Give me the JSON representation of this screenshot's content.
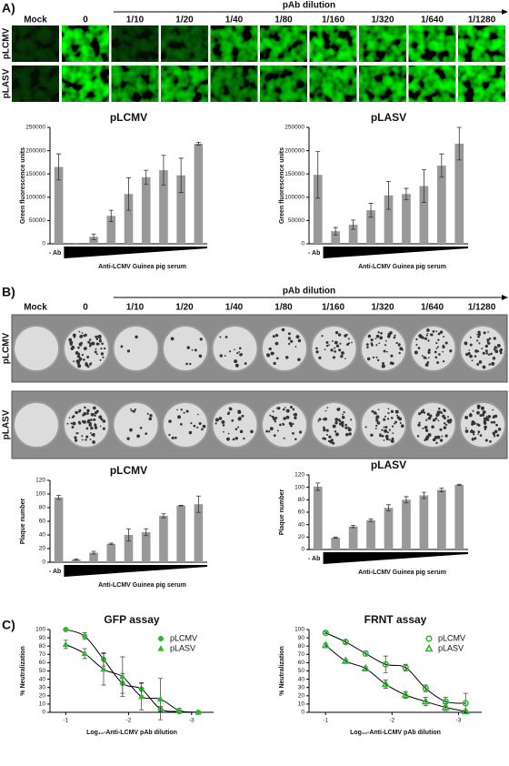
{
  "panel_a": {
    "label": "A)",
    "arrow_label": "pAb dilution",
    "columns": [
      "Mock",
      "0",
      "1/10",
      "1/20",
      "1/40",
      "1/80",
      "1/160",
      "1/320",
      "1/640",
      "1/1280"
    ],
    "rows": [
      "pLCMV",
      "pLASV"
    ]
  },
  "panel_b": {
    "label": "B)",
    "arrow_label": "pAb dilution",
    "columns": [
      "Mock",
      "0",
      "1/10",
      "1/20",
      "1/40",
      "1/80",
      "1/160",
      "1/320",
      "1/640",
      "1/1280"
    ],
    "rows": [
      "pLCMV",
      "pLASV"
    ]
  },
  "panel_c": {
    "label": "C)"
  },
  "chart_data": [
    {
      "type": "bar",
      "title": "pLCMV",
      "y_label": "Green fluorescence units",
      "x_label": "Anti-LCMV Guinea pig serum",
      "color": "#999999",
      "categories": [
        "- Ab",
        null,
        null,
        null,
        null,
        null,
        null,
        null,
        null
      ],
      "values": [
        165000,
        0,
        15000,
        60000,
        107000,
        143000,
        158000,
        147000,
        215000
      ],
      "errors": [
        28000,
        0,
        6000,
        12000,
        35000,
        15000,
        32000,
        37000,
        3000
      ],
      "ylim": [
        0,
        250000
      ],
      "yticks": [
        0,
        50000,
        100000,
        150000,
        200000,
        250000
      ]
    },
    {
      "type": "bar",
      "title": "pLASV",
      "y_label": "Green fluorescence units",
      "x_label": "Anti-LCMV Guinea pig serum",
      "color": "#999999",
      "categories": [
        "- Ab",
        null,
        null,
        null,
        null,
        null,
        null,
        null,
        null
      ],
      "values": [
        148000,
        27000,
        41000,
        72000,
        104000,
        107000,
        124000,
        168000,
        215000
      ],
      "errors": [
        50000,
        8000,
        10000,
        15000,
        30000,
        12000,
        35000,
        25000,
        35000
      ],
      "ylim": [
        0,
        250000
      ],
      "yticks": [
        0,
        50000,
        100000,
        150000,
        200000,
        250000
      ]
    },
    {
      "type": "bar",
      "title": "pLCMV",
      "y_label": "Plaque number",
      "x_label": "Anti-LCMV Guinea pig serum",
      "color": "#999999",
      "categories": [
        "- Ab",
        null,
        null,
        null,
        null,
        null,
        null,
        null,
        null
      ],
      "values": [
        95,
        4,
        14,
        27,
        40,
        44,
        68,
        83,
        85
      ],
      "errors": [
        3,
        1,
        2,
        1,
        9,
        5,
        3,
        0.5,
        12
      ],
      "ylim": [
        0,
        120
      ],
      "yticks": [
        0,
        20,
        40,
        60,
        80,
        100,
        120
      ]
    },
    {
      "type": "bar",
      "title": "pLASV",
      "y_label": "Plaque number",
      "x_label": "Anti-LCMV Guinea pig serum",
      "color": "#999999",
      "categories": [
        "- Ab",
        null,
        null,
        null,
        null,
        null,
        null,
        null,
        null
      ],
      "values": [
        101,
        19,
        37,
        47,
        67,
        80,
        87,
        96,
        104
      ],
      "errors": [
        6,
        1,
        2,
        2,
        5,
        5,
        5,
        3,
        1
      ],
      "ylim": [
        0,
        120
      ],
      "yticks": [
        0,
        20,
        40,
        60,
        80,
        100,
        120
      ]
    },
    {
      "type": "scatter",
      "title": "GFP assay",
      "y_label": "% Neutralization",
      "x_label": "Log₁₀-Anti-LCMV pAb dilution",
      "markers": "filled",
      "x": [
        -1,
        -1.301,
        -1.602,
        -1.903,
        -2.204,
        -2.505,
        -2.806,
        -3.107
      ],
      "series": [
        {
          "name": "pLCMV",
          "color": "#33b533",
          "marker": "circle",
          "values": [
            100,
            92,
            64,
            35,
            28,
            4,
            1,
            0
          ],
          "errors": [
            0,
            4,
            8,
            12,
            8,
            3,
            1,
            0
          ]
        },
        {
          "name": "pLASV",
          "color": "#33b533",
          "marker": "triangle",
          "values": [
            82,
            71,
            52,
            43,
            19,
            16,
            2,
            0
          ],
          "errors": [
            5,
            6,
            19,
            24,
            16,
            25,
            3,
            0
          ]
        }
      ],
      "xlim": [
        -0.75,
        -3.35
      ],
      "xticks": [
        -1,
        -2,
        -3
      ],
      "ylim": [
        0,
        100
      ],
      "yticks": [
        0,
        10,
        20,
        30,
        40,
        50,
        60,
        70,
        80,
        90,
        100
      ]
    },
    {
      "type": "scatter",
      "title": "FRNT assay",
      "y_label": "% Neutralization",
      "x_label": "Log₁₀-Anti-LCMV pAb dilution",
      "markers": "open",
      "x": [
        -1,
        -1.301,
        -1.602,
        -1.903,
        -2.204,
        -2.505,
        -2.806,
        -3.107
      ],
      "series": [
        {
          "name": "pLCMV",
          "color": "#33b533",
          "marker": "circle",
          "values": [
            96,
            85,
            71,
            58,
            54,
            29,
            13,
            11
          ],
          "errors": [
            1,
            2,
            3,
            10,
            4,
            4,
            5,
            12
          ]
        },
        {
          "name": "pLASV",
          "color": "#33b533",
          "marker": "triangle",
          "values": [
            81,
            62,
            53,
            34,
            21,
            13,
            6,
            1
          ],
          "errors": [
            2,
            2,
            2,
            5,
            4,
            5,
            4,
            2
          ]
        }
      ],
      "xlim": [
        -0.75,
        -3.35
      ],
      "xticks": [
        -1,
        -2,
        -3
      ],
      "ylim": [
        0,
        100
      ],
      "yticks": [
        0,
        10,
        20,
        30,
        40,
        50,
        60,
        70,
        80,
        90,
        100
      ]
    }
  ]
}
